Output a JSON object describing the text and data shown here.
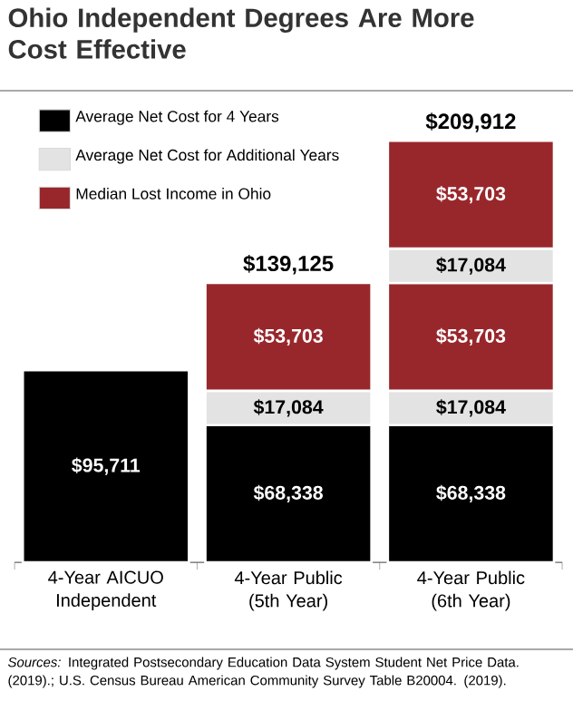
{
  "chart_data": {
    "type": "bar",
    "stacked": true,
    "title": "Ohio Independent Degrees Are More Cost Effective",
    "categories": [
      "4-Year AICUO Independent",
      "4-Year Public (5th Year)",
      "4-Year Public (6th Year)"
    ],
    "series": [
      {
        "name": "Average Net Cost for 4 Years",
        "color": "#000000",
        "values": [
          95711,
          68338,
          68338
        ],
        "value_labels": [
          "$95,711",
          "$68,338",
          "$68,338"
        ]
      },
      {
        "name": "Average Net Cost for Additional Years",
        "color": "#e3e3e3",
        "values": [
          null,
          17084,
          17084
        ],
        "value_labels": [
          null,
          "$17,084",
          "$17,084"
        ]
      },
      {
        "name": "Median Lost Income in Ohio",
        "color": "#98272c",
        "values": [
          null,
          53703,
          53703
        ],
        "value_labels": [
          null,
          "$53,703",
          "$53,703"
        ]
      },
      {
        "color": "#e3e3e3",
        "values": [
          null,
          null,
          17084
        ],
        "value_labels": [
          null,
          null,
          "$17,084"
        ]
      },
      {
        "color": "#98272c",
        "values": [
          null,
          null,
          53703
        ],
        "value_labels": [
          null,
          null,
          "$53,703"
        ]
      }
    ],
    "totals": [
      null,
      "$139,125",
      "$209,912"
    ],
    "legend": "top left",
    "annotations": [
      "*Sources:* Integrated Postsecondary Education Data System Student Net Price Data. (2019).; U.S. Census Bureau American Community Survey Table B20004. (2019)."
    ]
  }
}
